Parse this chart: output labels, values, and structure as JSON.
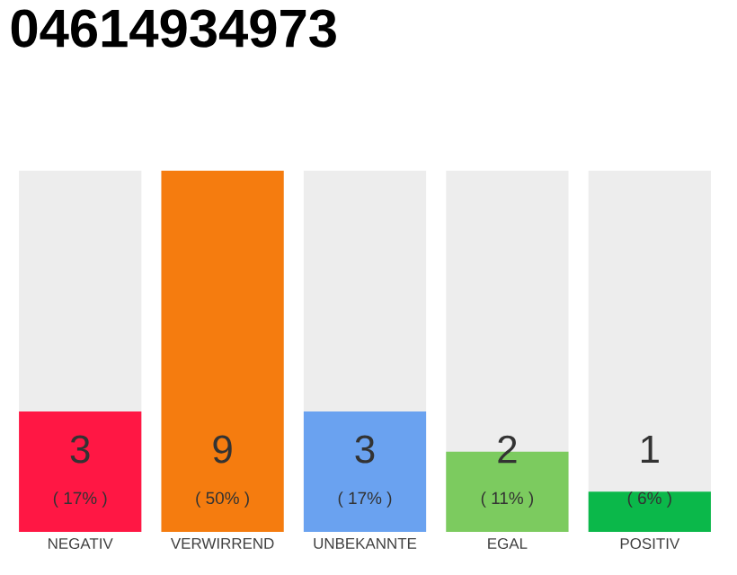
{
  "chart_data": {
    "type": "bar",
    "title": "04614934973",
    "categories": [
      "NEGATIV",
      "VERWIRREND",
      "UNBEKANNTE",
      "EGAL",
      "POSITIV"
    ],
    "values": [
      3,
      9,
      3,
      2,
      1
    ],
    "colors": [
      "#ff1744",
      "#f57c0f",
      "#6aa2f0",
      "#7ccb5f",
      "#0bb84a"
    ],
    "data_labels": true,
    "annotations": [
      "( 17% )",
      "( 50% )",
      "( 17% )",
      "( 11% )",
      "( 6% )"
    ]
  }
}
